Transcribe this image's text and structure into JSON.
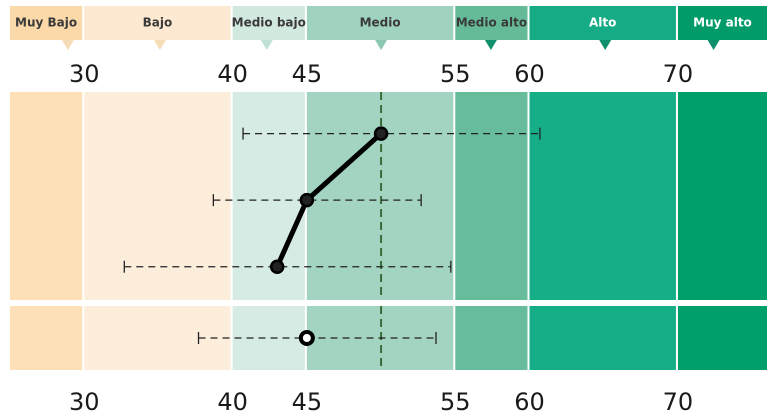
{
  "chart_data": {
    "type": "scatter",
    "title": "",
    "xlabel": "",
    "ylabel": "",
    "xlim": [
      25,
      76
    ],
    "x_ticks": [
      "30",
      "40",
      "45",
      "55",
      "60",
      "70"
    ],
    "reference_line_x": 50,
    "bands": [
      {
        "label": "Muy Bajo",
        "from": 25,
        "to": 30,
        "color": "#fde0b8",
        "header_color": "#fcd9a8"
      },
      {
        "label": "Bajo",
        "from": 30,
        "to": 40,
        "color": "#fdeedc",
        "header_color": "#fde9d1"
      },
      {
        "label": "Medio bajo",
        "from": 40,
        "to": 45,
        "color": "#d6ebe3",
        "header_color": "#d2e9e0"
      },
      {
        "label": "Medio",
        "from": 45,
        "to": 55,
        "color": "#a2d4c1",
        "header_color": "#9fd2bf"
      },
      {
        "label": "Medio alto",
        "from": 55,
        "to": 60,
        "color": "#67bd9b",
        "header_color": "#65bb98"
      },
      {
        "label": "Alto",
        "from": 60,
        "to": 70,
        "color": "#16ae87",
        "header_color": "#15ab85"
      },
      {
        "label": "Muy alto",
        "from": 70,
        "to": 76,
        "color": "#009e6b",
        "header_color": "#009b69"
      }
    ],
    "header_markers": [
      28.9,
      35.1,
      42.3,
      50.0,
      57.4,
      65.1,
      72.4
    ],
    "series": [
      {
        "points": [
          {
            "x": 50.0,
            "low": 40.7,
            "high": 60.7
          },
          {
            "x": 45.0,
            "low": 38.7,
            "high": 52.7
          },
          {
            "x": 43.0,
            "low": 32.7,
            "high": 54.7
          }
        ]
      }
    ],
    "summary": {
      "x": 45.0,
      "low": 37.7,
      "high": 53.7
    }
  }
}
